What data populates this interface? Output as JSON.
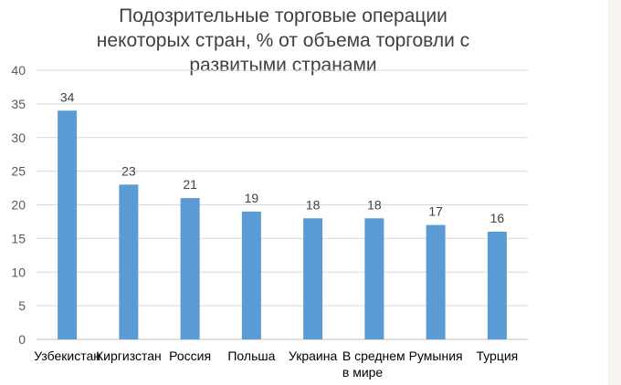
{
  "chart_data": {
    "type": "bar",
    "title_lines": [
      "Подозрительные торговые операции",
      "некоторых стран, % от объема торговли с",
      "развитыми странами"
    ],
    "categories": [
      [
        "Узбекистан"
      ],
      [
        "Киргизстан"
      ],
      [
        "Россия"
      ],
      [
        "Польша"
      ],
      [
        "Украина"
      ],
      [
        "В среднем",
        "в мире"
      ],
      [
        "Румыния"
      ],
      [
        "Турция"
      ]
    ],
    "values": [
      34,
      23,
      21,
      19,
      18,
      18,
      17,
      16
    ],
    "ylim": [
      0,
      40
    ],
    "yticks": [
      0,
      5,
      10,
      15,
      20,
      25,
      30,
      35,
      40
    ],
    "grid": true,
    "bar_color": "#5b9bd5",
    "grid_color": "#d9d9d9"
  }
}
